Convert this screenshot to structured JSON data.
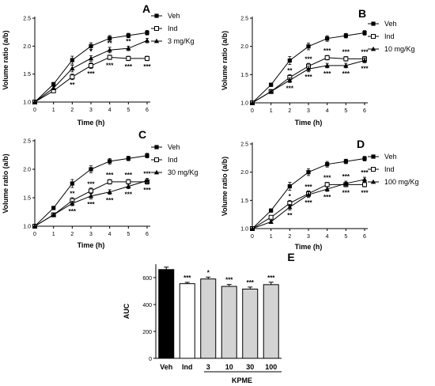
{
  "chart_data": [
    {
      "type": "line",
      "panel": "A",
      "xlabel": "Time (h)",
      "ylabel": "Volume ratio (a/b)",
      "xlim": [
        0,
        6
      ],
      "ylim": [
        1.0,
        2.5
      ],
      "x": [
        0,
        1,
        2,
        3,
        4,
        5,
        6
      ],
      "x_ticks": [
        "0",
        "1",
        "2",
        "3",
        "4",
        "5",
        "6"
      ],
      "y_ticks": [
        "1.0",
        "1.5",
        "2.0",
        "2.5"
      ],
      "legend_position": "top-right",
      "series": [
        {
          "name": "Veh",
          "marker": "filled-square",
          "values": [
            1.0,
            1.32,
            1.75,
            2.0,
            2.14,
            2.19,
            2.24
          ],
          "err": [
            0,
            0.03,
            0.07,
            0.06,
            0.05,
            0.04,
            0.04
          ]
        },
        {
          "name": "Ind",
          "marker": "open-square",
          "values": [
            1.0,
            1.2,
            1.45,
            1.65,
            1.8,
            1.78,
            1.78
          ],
          "err": [
            0,
            0.03,
            0.05,
            0.05,
            0.04,
            0.04,
            0.04
          ]
        },
        {
          "name": "3 mg/Kg",
          "marker": "filled-triangle",
          "values": [
            1.0,
            1.25,
            1.6,
            1.78,
            1.93,
            1.96,
            2.1
          ],
          "err": [
            0,
            0.03,
            0.06,
            0.05,
            0.05,
            0.04,
            0.04
          ]
        }
      ],
      "annotations_above": [
        "",
        "",
        "",
        "*",
        "**",
        "**",
        "*"
      ],
      "annotations_below": [
        "",
        "",
        "**",
        "***",
        "***",
        "***",
        "***"
      ]
    },
    {
      "type": "line",
      "panel": "B",
      "xlabel": "Time (h)",
      "ylabel": "Volume ratio (a/b)",
      "xlim": [
        0,
        6
      ],
      "ylim": [
        1.0,
        2.5
      ],
      "x": [
        0,
        1,
        2,
        3,
        4,
        5,
        6
      ],
      "x_ticks": [
        "0",
        "1",
        "2",
        "3",
        "4",
        "5",
        "6"
      ],
      "y_ticks": [
        "1.0",
        "1.5",
        "2.0",
        "2.5"
      ],
      "legend_position": "top-right",
      "series": [
        {
          "name": "Veh",
          "marker": "filled-square",
          "values": [
            1.0,
            1.32,
            1.75,
            2.0,
            2.14,
            2.19,
            2.24
          ],
          "err": [
            0,
            0.03,
            0.07,
            0.06,
            0.05,
            0.04,
            0.04
          ]
        },
        {
          "name": "Ind",
          "marker": "open-square",
          "values": [
            1.0,
            1.2,
            1.45,
            1.65,
            1.8,
            1.78,
            1.78
          ],
          "err": [
            0,
            0.03,
            0.05,
            0.05,
            0.04,
            0.04,
            0.04
          ]
        },
        {
          "name": "10 mg/Kg",
          "marker": "filled-triangle",
          "values": [
            1.0,
            1.2,
            1.4,
            1.6,
            1.66,
            1.66,
            1.75
          ],
          "err": [
            0,
            0.03,
            0.04,
            0.05,
            0.04,
            0.04,
            0.04
          ]
        }
      ],
      "annotations_above": [
        "",
        "",
        "**",
        "***",
        "***",
        "***",
        "***"
      ],
      "annotations_below": [
        "",
        "",
        "***",
        "***",
        "***",
        "***",
        "***"
      ]
    },
    {
      "type": "line",
      "panel": "C",
      "xlabel": "Time (h)",
      "ylabel": "Volume ratio (a/b)",
      "xlim": [
        0,
        6
      ],
      "ylim": [
        1.0,
        2.5
      ],
      "x": [
        0,
        1,
        2,
        3,
        4,
        5,
        6
      ],
      "x_ticks": [
        "0",
        "1",
        "2",
        "3",
        "4",
        "5",
        "6"
      ],
      "y_ticks": [
        "1.0",
        "1.5",
        "2.0",
        "2.5"
      ],
      "legend_position": "top-right",
      "series": [
        {
          "name": "Veh",
          "marker": "filled-square",
          "values": [
            1.0,
            1.32,
            1.75,
            2.0,
            2.14,
            2.19,
            2.24
          ],
          "err": [
            0,
            0.03,
            0.07,
            0.06,
            0.05,
            0.04,
            0.04
          ]
        },
        {
          "name": "Ind",
          "marker": "open-square",
          "values": [
            1.0,
            1.2,
            1.45,
            1.62,
            1.78,
            1.78,
            1.78
          ],
          "err": [
            0,
            0.03,
            0.05,
            0.05,
            0.04,
            0.04,
            0.04
          ]
        },
        {
          "name": "30 mg/Kg",
          "marker": "filled-triangle",
          "values": [
            1.0,
            1.2,
            1.4,
            1.53,
            1.6,
            1.7,
            1.8
          ],
          "err": [
            0,
            0.03,
            0.04,
            0.05,
            0.04,
            0.04,
            0.04
          ]
        }
      ],
      "annotations_above": [
        "",
        "",
        "**",
        "***",
        "***",
        "***",
        "***"
      ],
      "annotations_below": [
        "",
        "",
        "***",
        "***",
        "***",
        "***",
        "***"
      ]
    },
    {
      "type": "line",
      "panel": "D",
      "xlabel": "Time (h)",
      "ylabel": "Volume ratio (a/b)",
      "xlim": [
        0,
        6
      ],
      "ylim": [
        1.0,
        2.5
      ],
      "x": [
        0,
        1,
        2,
        3,
        4,
        5,
        6
      ],
      "x_ticks": [
        "0",
        "1",
        "2",
        "3",
        "4",
        "5",
        "6"
      ],
      "y_ticks": [
        "1.0",
        "1.5",
        "2.0",
        "2.5"
      ],
      "legend_position": "top-right",
      "series": [
        {
          "name": "Veh",
          "marker": "filled-square",
          "values": [
            1.0,
            1.32,
            1.75,
            2.0,
            2.14,
            2.19,
            2.24
          ],
          "err": [
            0,
            0.03,
            0.07,
            0.06,
            0.05,
            0.04,
            0.04
          ]
        },
        {
          "name": "Ind",
          "marker": "open-square",
          "values": [
            1.0,
            1.2,
            1.45,
            1.62,
            1.78,
            1.78,
            1.78
          ],
          "err": [
            0,
            0.03,
            0.05,
            0.05,
            0.04,
            0.04,
            0.04
          ]
        },
        {
          "name": "100 mg/Kg",
          "marker": "filled-triangle",
          "values": [
            1.0,
            1.12,
            1.38,
            1.6,
            1.7,
            1.8,
            1.87
          ],
          "err": [
            0,
            0.03,
            0.05,
            0.05,
            0.04,
            0.04,
            0.04
          ]
        }
      ],
      "annotations_above": [
        "",
        "",
        "*",
        "***",
        "***",
        "***",
        "***"
      ],
      "annotations_below": [
        "",
        "",
        "**",
        "***",
        "***",
        "***",
        "***"
      ]
    },
    {
      "type": "bar",
      "panel": "E",
      "ylabel": "AUC",
      "ylim": [
        0,
        700
      ],
      "y_ticks": [
        "0",
        "200",
        "400",
        "600"
      ],
      "categories": [
        "Veh",
        "Ind",
        "3",
        "10",
        "30",
        "100"
      ],
      "values": [
        660,
        555,
        590,
        535,
        515,
        548
      ],
      "err": [
        18,
        10,
        14,
        14,
        15,
        18
      ],
      "bar_colors": [
        "#000000",
        "#ffffff",
        "#d3d3d3",
        "#d3d3d3",
        "#d3d3d3",
        "#d3d3d3"
      ],
      "annotations": [
        "",
        "***",
        "*",
        "***",
        "***",
        "***"
      ],
      "group_label": "KPME"
    }
  ]
}
